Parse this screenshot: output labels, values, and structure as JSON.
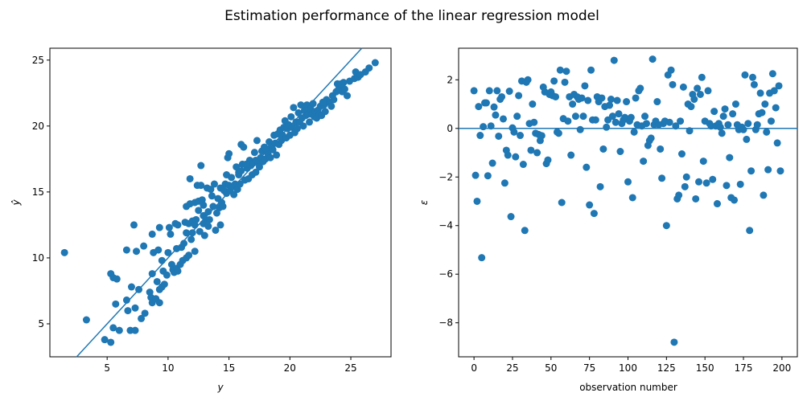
{
  "figure": {
    "title": "Estimation performance of the linear regression model"
  },
  "chart_data": [
    {
      "type": "scatter",
      "xlabel": "y",
      "ylabel": "ŷ",
      "xlim": [
        0.3,
        28.3
      ],
      "ylim": [
        2.5,
        25.9
      ],
      "xticks": [
        5,
        10,
        15,
        20,
        25
      ],
      "yticks": [
        5,
        10,
        15,
        20,
        25
      ],
      "reference_line": "identity (ŷ = y)",
      "marker_color": "#1f77b4",
      "grid": false,
      "points": [
        [
          1.5,
          10.4
        ],
        [
          3.3,
          5.3
        ],
        [
          4.8,
          3.8
        ],
        [
          5.3,
          3.6
        ],
        [
          5.5,
          4.7
        ],
        [
          5.3,
          8.8
        ],
        [
          5.5,
          8.5
        ],
        [
          5.7,
          6.5
        ],
        [
          5.8,
          8.4
        ],
        [
          6.0,
          4.5
        ],
        [
          6.6,
          10.6
        ],
        [
          6.6,
          6.8
        ],
        [
          6.7,
          6.0
        ],
        [
          6.9,
          4.5
        ],
        [
          7.0,
          7.8
        ],
        [
          7.2,
          12.5
        ],
        [
          7.3,
          6.2
        ],
        [
          7.3,
          4.5
        ],
        [
          7.4,
          10.5
        ],
        [
          7.6,
          7.6
        ],
        [
          7.8,
          5.4
        ],
        [
          8.0,
          10.9
        ],
        [
          8.1,
          5.8
        ],
        [
          8.5,
          7.4
        ],
        [
          8.6,
          7.0
        ],
        [
          8.7,
          11.8
        ],
        [
          8.7,
          8.8
        ],
        [
          8.7,
          6.6
        ],
        [
          8.8,
          10.4
        ],
        [
          9.0,
          6.9
        ],
        [
          9.1,
          8.2
        ],
        [
          9.2,
          10.6
        ],
        [
          9.3,
          12.3
        ],
        [
          9.3,
          7.6
        ],
        [
          9.3,
          6.6
        ],
        [
          9.5,
          9.8
        ],
        [
          9.5,
          7.8
        ],
        [
          9.6,
          9.0
        ],
        [
          9.7,
          8.0
        ],
        [
          9.9,
          8.7
        ],
        [
          10.0,
          10.4
        ],
        [
          10.1,
          12.3
        ],
        [
          10.2,
          11.8
        ],
        [
          10.3,
          9.5
        ],
        [
          10.4,
          9.1
        ],
        [
          10.5,
          8.9
        ],
        [
          10.6,
          12.6
        ],
        [
          10.7,
          10.7
        ],
        [
          10.7,
          9.2
        ],
        [
          10.8,
          9.0
        ],
        [
          10.8,
          12.5
        ],
        [
          11.0,
          9.5
        ],
        [
          11.1,
          10.8
        ],
        [
          11.2,
          9.8
        ],
        [
          11.3,
          11.1
        ],
        [
          11.4,
          12.7
        ],
        [
          11.5,
          13.9
        ],
        [
          11.5,
          11.9
        ],
        [
          11.5,
          10.0
        ],
        [
          11.7,
          10.2
        ],
        [
          11.7,
          12.6
        ],
        [
          11.8,
          16.0
        ],
        [
          11.8,
          14.1
        ],
        [
          11.9,
          11.4
        ],
        [
          12.0,
          12.8
        ],
        [
          12.0,
          11.9
        ],
        [
          12.2,
          14.2
        ],
        [
          12.2,
          12.5
        ],
        [
          12.2,
          10.5
        ],
        [
          12.4,
          15.5
        ],
        [
          12.5,
          14.3
        ],
        [
          12.5,
          13.6
        ],
        [
          12.6,
          12.0
        ],
        [
          12.7,
          17.0
        ],
        [
          12.7,
          15.5
        ],
        [
          12.8,
          14.4
        ],
        [
          12.9,
          14.0
        ],
        [
          12.9,
          13.2
        ],
        [
          12.9,
          12.6
        ],
        [
          13.0,
          11.7
        ],
        [
          13.1,
          12.9
        ],
        [
          13.2,
          15.3
        ],
        [
          13.3,
          13.5
        ],
        [
          13.3,
          12.4
        ],
        [
          13.4,
          12.9
        ],
        [
          13.5,
          15.2
        ],
        [
          13.6,
          14.7
        ],
        [
          13.7,
          13.9
        ],
        [
          13.8,
          15.6
        ],
        [
          13.9,
          12.1
        ],
        [
          14.1,
          14.5
        ],
        [
          14.2,
          13.8
        ],
        [
          14.3,
          15.3
        ],
        [
          14.3,
          12.5
        ],
        [
          14.4,
          14.2
        ],
        [
          14.5,
          13.9
        ],
        [
          14.6,
          15.1
        ],
        [
          14.7,
          15.6
        ],
        [
          14.8,
          14.9
        ],
        [
          14.8,
          16.3
        ],
        [
          14.9,
          17.6
        ],
        [
          15.0,
          15.5
        ],
        [
          15.0,
          17.9
        ],
        [
          15.1,
          15.1
        ],
        [
          15.2,
          16.1
        ],
        [
          15.3,
          15.4
        ],
        [
          15.4,
          14.8
        ],
        [
          15.5,
          15.6
        ],
        [
          15.6,
          16.9
        ],
        [
          15.7,
          15.2
        ],
        [
          15.8,
          16.5
        ],
        [
          15.8,
          16.3
        ],
        [
          15.9,
          15.6
        ],
        [
          16.0,
          16.6
        ],
        [
          16.0,
          18.6
        ],
        [
          16.1,
          17.1
        ],
        [
          16.2,
          18.4
        ],
        [
          16.3,
          15.9
        ],
        [
          16.5,
          16.8
        ],
        [
          16.6,
          16.0
        ],
        [
          16.7,
          17.4
        ],
        [
          16.8,
          17.0
        ],
        [
          16.9,
          16.3
        ],
        [
          17.0,
          17.2
        ],
        [
          17.1,
          18.0
        ],
        [
          17.2,
          16.5
        ],
        [
          17.2,
          17.4
        ],
        [
          17.3,
          18.9
        ],
        [
          17.4,
          17.2
        ],
        [
          17.5,
          16.9
        ],
        [
          17.6,
          17.6
        ],
        [
          17.7,
          18.1
        ],
        [
          17.8,
          17.3
        ],
        [
          17.9,
          18.4
        ],
        [
          18.0,
          17.5
        ],
        [
          18.1,
          18.1
        ],
        [
          18.2,
          17.9
        ],
        [
          18.3,
          18.8
        ],
        [
          18.4,
          17.6
        ],
        [
          18.5,
          18.5
        ],
        [
          18.6,
          18.2
        ],
        [
          18.7,
          19.3
        ],
        [
          18.8,
          18.7
        ],
        [
          18.9,
          17.8
        ],
        [
          19.0,
          19.4
        ],
        [
          19.1,
          18.6
        ],
        [
          19.2,
          19.7
        ],
        [
          19.3,
          18.9
        ],
        [
          19.4,
          19.3
        ],
        [
          19.5,
          19.9
        ],
        [
          19.6,
          20.4
        ],
        [
          19.7,
          19.1
        ],
        [
          19.8,
          19.8
        ],
        [
          19.9,
          20.1
        ],
        [
          20.0,
          19.3
        ],
        [
          20.1,
          20.7
        ],
        [
          20.2,
          19.9
        ],
        [
          20.3,
          21.4
        ],
        [
          20.4,
          19.5
        ],
        [
          20.5,
          20.3
        ],
        [
          20.6,
          19.8
        ],
        [
          20.7,
          21.0
        ],
        [
          20.8,
          20.3
        ],
        [
          20.9,
          21.6
        ],
        [
          21.0,
          20.6
        ],
        [
          21.1,
          20.0
        ],
        [
          21.2,
          21.2
        ],
        [
          21.3,
          20.8
        ],
        [
          21.4,
          21.6
        ],
        [
          21.5,
          20.9
        ],
        [
          21.6,
          20.3
        ],
        [
          21.7,
          21.3
        ],
        [
          21.8,
          20.9
        ],
        [
          21.9,
          21.7
        ],
        [
          22.0,
          20.7
        ],
        [
          22.1,
          21.1
        ],
        [
          22.2,
          20.6
        ],
        [
          22.3,
          21.2
        ],
        [
          22.4,
          20.9
        ],
        [
          22.5,
          21.5
        ],
        [
          22.6,
          20.8
        ],
        [
          22.8,
          21.6
        ],
        [
          22.9,
          21.1
        ],
        [
          23.0,
          22.0
        ],
        [
          23.2,
          21.8
        ],
        [
          23.4,
          21.5
        ],
        [
          23.6,
          22.0
        ],
        [
          23.8,
          22.6
        ],
        [
          23.9,
          23.2
        ],
        [
          24.0,
          22.8
        ],
        [
          24.1,
          23.0
        ],
        [
          24.3,
          22.6
        ],
        [
          24.4,
          23.3
        ],
        [
          24.5,
          22.8
        ],
        [
          24.7,
          22.3
        ],
        [
          24.9,
          23.4
        ],
        [
          25.3,
          23.6
        ],
        [
          25.4,
          24.1
        ],
        [
          25.6,
          23.7
        ],
        [
          26.2,
          24.1
        ],
        [
          27.0,
          24.8
        ],
        [
          26.5,
          24.4
        ],
        [
          25.8,
          23.9
        ],
        [
          24.2,
          23.2
        ],
        [
          23.5,
          22.3
        ],
        [
          22.7,
          21.8
        ],
        [
          18.0,
          18.3
        ],
        [
          16.4,
          17.1
        ],
        [
          14.0,
          13.4
        ],
        [
          12.3,
          12.9
        ]
      ]
    },
    {
      "type": "scatter",
      "xlabel": "observation number",
      "ylabel": "ε",
      "xlim": [
        -10,
        210
      ],
      "ylim": [
        -9.4,
        3.3
      ],
      "xticks": [
        0,
        25,
        50,
        75,
        100,
        125,
        150,
        175,
        200
      ],
      "yticks": [
        -8,
        -6,
        -4,
        -2,
        0,
        2
      ],
      "reference_line": "horizontal at ε = 0",
      "marker_color": "#1f77b4",
      "grid": false,
      "y": [
        1.55,
        -1.93,
        -3.0,
        0.9,
        -0.29,
        -5.32,
        0.07,
        1.05,
        1.05,
        -1.95,
        1.55,
        0.1,
        -1.43,
        0.88,
        0.55,
        1.55,
        -0.32,
        1.2,
        1.3,
        0.39,
        -2.25,
        -0.9,
        -1.1,
        1.53,
        -3.63,
        0.02,
        -0.15,
        -1.17,
        0.5,
        1.35,
        -0.29,
        1.95,
        -1.48,
        -4.2,
        1.9,
        2.0,
        0.2,
        -0.9,
        1.0,
        0.25,
        -0.2,
        -1.0,
        -0.25,
        -0.5,
        -0.3,
        1.7,
        1.5,
        -1.45,
        -1.3,
        1.4,
        1.5,
        1.35,
        1.95,
        1.3,
        -0.15,
        -0.2,
        2.4,
        -3.05,
        0.4,
        1.9,
        2.35,
        0.3,
        1.3,
        -1.1,
        1.0,
        1.4,
        0.5,
        1.3,
        1.2,
        -0.05,
        1.25,
        0.5,
        1.75,
        -1.6,
        1.15,
        -3.15,
        2.4,
        0.35,
        -3.5,
        0.35,
        1.3,
        1.1,
        -2.4,
        1.25,
        -0.85,
        0.9,
        0.05,
        0.35,
        0.95,
        1.2,
        0.5,
        2.8,
        0.25,
        1.15,
        0.6,
        -0.95,
        0.2,
        0.35,
        0.45,
        1.1,
        -2.2,
        0.3,
        0.45,
        -2.85,
        -0.15,
        1.25,
        0.15,
        1.55,
        1.65,
        0.1,
        -1.35,
        0.5,
        0.2,
        -0.7,
        -0.5,
        -0.4,
        2.85,
        0.15,
        0.3,
        1.1,
        0.15,
        -0.85,
        -2.05,
        0.2,
        0.3,
        -4.0,
        2.2,
        0.25,
        2.4,
        1.8,
        -8.8,
        0.1,
        -2.9,
        -2.75,
        0.3,
        -1.05,
        1.7,
        -2.4,
        -2.0,
        1.0,
        -0.1,
        0.9,
        1.4,
        1.2,
        -2.9,
        1.65,
        -2.2,
        1.4,
        2.1,
        -1.35,
        0.3,
        -2.25,
        1.55,
        0.2,
        0.1,
        -2.1,
        0.7,
        0.1,
        -3.1,
        0.2,
        0.05,
        -0.2,
        0.5,
        0.8,
        -2.35,
        0.15,
        -1.2,
        -2.85,
        0.6,
        -2.95,
        1.0,
        0.15,
        -0.05,
        -2.3,
        0.05,
        -0.05,
        2.2,
        -0.45,
        0.2,
        -4.2,
        -1.75,
        2.1,
        1.8,
        -0.05,
        0.15,
        0.6,
        1.45,
        0.65,
        -2.75,
        1.0,
        -0.15,
        -1.7,
        1.45,
        0.3,
        2.25,
        1.55,
        0.85,
        -0.6,
        1.75,
        -1.75
      ],
      "x_start": 0
    }
  ]
}
